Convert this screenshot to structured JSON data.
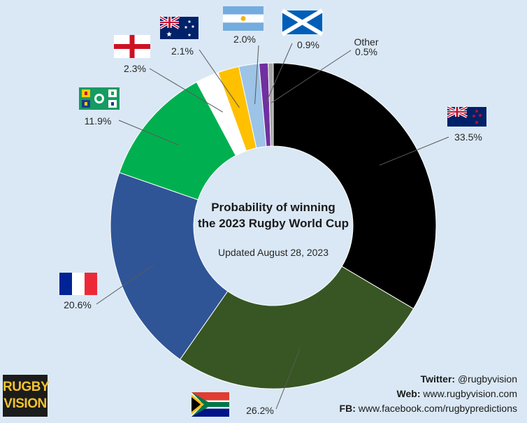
{
  "chart_data": {
    "type": "pie",
    "variant": "donut",
    "title": "Probability of winning the 2023 Rugby World Cup",
    "subtitle": "Updated August 28, 2023",
    "slices": [
      {
        "label": "",
        "country": "New Zealand",
        "value": 33.5,
        "value_label": "33.5%",
        "color": "#000000"
      },
      {
        "label": "",
        "country": "South Africa",
        "value": 26.2,
        "value_label": "26.2%",
        "color": "#375623"
      },
      {
        "label": "",
        "country": "France",
        "value": 20.6,
        "value_label": "20.6%",
        "color": "#2f5597"
      },
      {
        "label": "",
        "country": "Ireland",
        "value": 11.9,
        "value_label": "11.9%",
        "color": "#00b050"
      },
      {
        "label": "",
        "country": "England",
        "value": 2.3,
        "value_label": "2.3%",
        "color": "#ffffff"
      },
      {
        "label": "",
        "country": "Australia",
        "value": 2.1,
        "value_label": "2.1%",
        "color": "#ffc000"
      },
      {
        "label": "",
        "country": "Argentina",
        "value": 2.0,
        "value_label": "2.0%",
        "color": "#9dc3e6"
      },
      {
        "label": "",
        "country": "Scotland",
        "value": 0.9,
        "value_label": "0.9%",
        "color": "#7030a0"
      },
      {
        "label": "Other",
        "country": "",
        "value": 0.5,
        "value_label": "0.5%",
        "color": "#a6a6a6"
      }
    ]
  },
  "credits": {
    "twitter_label": "Twitter:",
    "twitter_value": "@rugbyvision",
    "web_label": "Web:",
    "web_value": "www.rugbyvision.com",
    "fb_label": "FB:",
    "fb_value": "www.facebook.com/rugbypredictions"
  },
  "logo": {
    "line1": "RUGBY",
    "line2": "VISION"
  }
}
